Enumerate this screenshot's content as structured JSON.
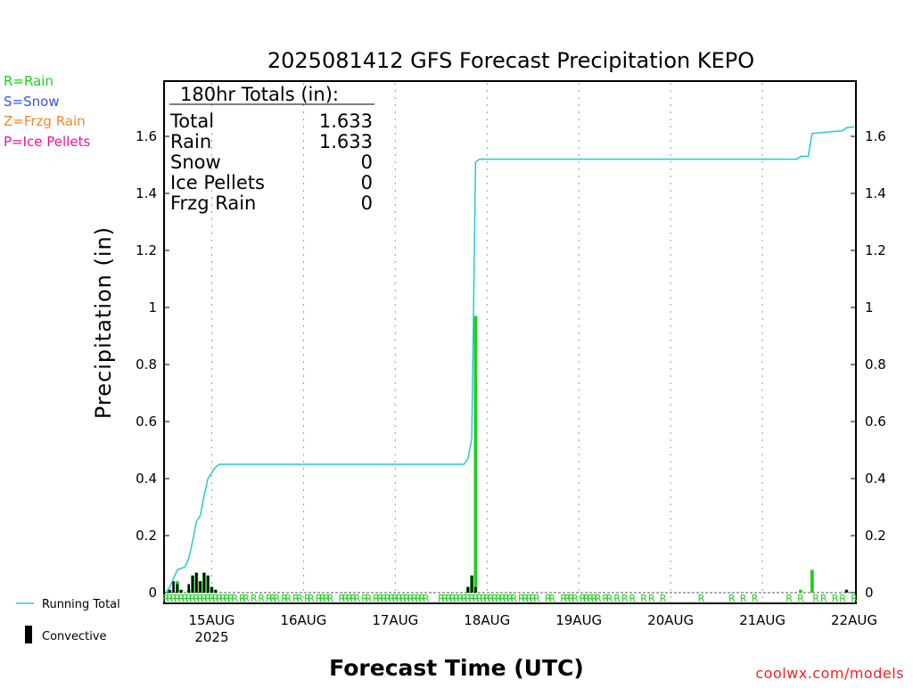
{
  "colors": {
    "rain": "#22cc22",
    "snow": "#3355ee",
    "frzg_rain": "#ee8833",
    "ice_pellets": "#ee1199",
    "running_total": "#22cccc",
    "convective": "#000000",
    "watermark": "#ee2222"
  },
  "legend": {
    "rain": "R=Rain",
    "snow": "S=Snow",
    "frzg_rain": "Z=Frzg Rain",
    "ice_pellets": "P=Ice Pellets",
    "running_total": "Running Total",
    "convective": "Convective"
  },
  "totals_box": {
    "header": "180hr Totals (in):",
    "rows": [
      {
        "label": "Total",
        "value": "1.633"
      },
      {
        "label": "Rain",
        "value": "1.633"
      },
      {
        "label": "Snow",
        "value": "0"
      },
      {
        "label": "Ice Pellets",
        "value": "0"
      },
      {
        "label": "Frzg Rain",
        "value": "0"
      }
    ]
  },
  "watermark": "coolwx.com/models",
  "chart_data": {
    "type": "bar",
    "title": "2025081412 GFS Forecast Precipitation KEPO",
    "xlabel": "Forecast Time (UTC)",
    "ylabel": "Precipitation (in)",
    "ylim": [
      0,
      1.8
    ],
    "xlim_hours": [
      0,
      180
    ],
    "y_ticks": [
      "0",
      "0.2",
      "0.4",
      "0.6",
      "0.8",
      "1",
      "1.2",
      "1.4",
      "1.6"
    ],
    "x_ticks": [
      {
        "hour": 12,
        "label": "15AUG",
        "sub": "2025"
      },
      {
        "hour": 36,
        "label": "16AUG",
        "sub": ""
      },
      {
        "hour": 60,
        "label": "17AUG",
        "sub": ""
      },
      {
        "hour": 84,
        "label": "18AUG",
        "sub": ""
      },
      {
        "hour": 108,
        "label": "19AUG",
        "sub": ""
      },
      {
        "hour": 132,
        "label": "20AUG",
        "sub": ""
      },
      {
        "hour": 156,
        "label": "21AUG",
        "sub": ""
      },
      {
        "hour": 180,
        "label": "22AUG",
        "sub": ""
      }
    ],
    "grid": "vertical dotted",
    "precip_bars": [
      {
        "hour": 1,
        "value": 0.01
      },
      {
        "hour": 3,
        "value": 0.04
      },
      {
        "hour": 4,
        "value": 0.01
      },
      {
        "hour": 6,
        "value": 0.01
      },
      {
        "hour": 7,
        "value": 0.06
      },
      {
        "hour": 8,
        "value": 0.07
      },
      {
        "hour": 9,
        "value": 0.04
      },
      {
        "hour": 10,
        "value": 0.07
      },
      {
        "hour": 11,
        "value": 0.06
      },
      {
        "hour": 12,
        "value": 0.02
      },
      {
        "hour": 13,
        "value": 0.01
      },
      {
        "hour": 79,
        "value": 0.02
      },
      {
        "hour": 80,
        "value": 0.06
      },
      {
        "hour": 81,
        "value": 0.97
      },
      {
        "hour": 166,
        "value": 0.01
      },
      {
        "hour": 169,
        "value": 0.08
      },
      {
        "hour": 178,
        "value": 0.01
      }
    ],
    "convective_bars": [
      {
        "hour": 1,
        "value": 0.01
      },
      {
        "hour": 2,
        "value": 0.04
      },
      {
        "hour": 3,
        "value": 0.03
      },
      {
        "hour": 4,
        "value": 0.01
      },
      {
        "hour": 6,
        "value": 0.03
      },
      {
        "hour": 7,
        "value": 0.06
      },
      {
        "hour": 8,
        "value": 0.07
      },
      {
        "hour": 9,
        "value": 0.04
      },
      {
        "hour": 10,
        "value": 0.07
      },
      {
        "hour": 11,
        "value": 0.06
      },
      {
        "hour": 12,
        "value": 0.02
      },
      {
        "hour": 13,
        "value": 0.01
      },
      {
        "hour": 79,
        "value": 0.02
      },
      {
        "hour": 80,
        "value": 0.06
      },
      {
        "hour": 81,
        "value": 0.02
      },
      {
        "hour": 178,
        "value": 0.01
      }
    ],
    "running_total": [
      {
        "hour": 0,
        "value": 0.0
      },
      {
        "hour": 1,
        "value": 0.02
      },
      {
        "hour": 2,
        "value": 0.05
      },
      {
        "hour": 3,
        "value": 0.08
      },
      {
        "hour": 5,
        "value": 0.09
      },
      {
        "hour": 6,
        "value": 0.12
      },
      {
        "hour": 7,
        "value": 0.18
      },
      {
        "hour": 8,
        "value": 0.25
      },
      {
        "hour": 9,
        "value": 0.27
      },
      {
        "hour": 10,
        "value": 0.34
      },
      {
        "hour": 11,
        "value": 0.4
      },
      {
        "hour": 12,
        "value": 0.42
      },
      {
        "hour": 13,
        "value": 0.44
      },
      {
        "hour": 14,
        "value": 0.45
      },
      {
        "hour": 78,
        "value": 0.45
      },
      {
        "hour": 79,
        "value": 0.47
      },
      {
        "hour": 80,
        "value": 0.54
      },
      {
        "hour": 81,
        "value": 1.51
      },
      {
        "hour": 82,
        "value": 1.52
      },
      {
        "hour": 165,
        "value": 1.52
      },
      {
        "hour": 166,
        "value": 1.53
      },
      {
        "hour": 168,
        "value": 1.53
      },
      {
        "hour": 169,
        "value": 1.61
      },
      {
        "hour": 177,
        "value": 1.62
      },
      {
        "hour": 178,
        "value": 1.63
      },
      {
        "hour": 180,
        "value": 1.633
      }
    ],
    "ptype_markers": {
      "symbol": "R",
      "hours": [
        0,
        1,
        2,
        3,
        4,
        5,
        6,
        7,
        8,
        9,
        10,
        11,
        12,
        13,
        14,
        15,
        16,
        17,
        18,
        20,
        21,
        23,
        25,
        27,
        28,
        29,
        31,
        32,
        34,
        35,
        37,
        38,
        40,
        41,
        42,
        43,
        46,
        47,
        48,
        49,
        50,
        52,
        53,
        55,
        56,
        57,
        58,
        59,
        60,
        61,
        62,
        63,
        64,
        65,
        66,
        67,
        68,
        72,
        73,
        74,
        75,
        76,
        77,
        78,
        79,
        80,
        81,
        82,
        83,
        84,
        85,
        86,
        87,
        88,
        89,
        90,
        91,
        93,
        94,
        95,
        96,
        97,
        100,
        101,
        104,
        105,
        106,
        107,
        109,
        110,
        111,
        112,
        113,
        115,
        116,
        118,
        120,
        122,
        125,
        127,
        130,
        140,
        148,
        151,
        154,
        163,
        166,
        170,
        172,
        175,
        177,
        180
      ]
    }
  }
}
